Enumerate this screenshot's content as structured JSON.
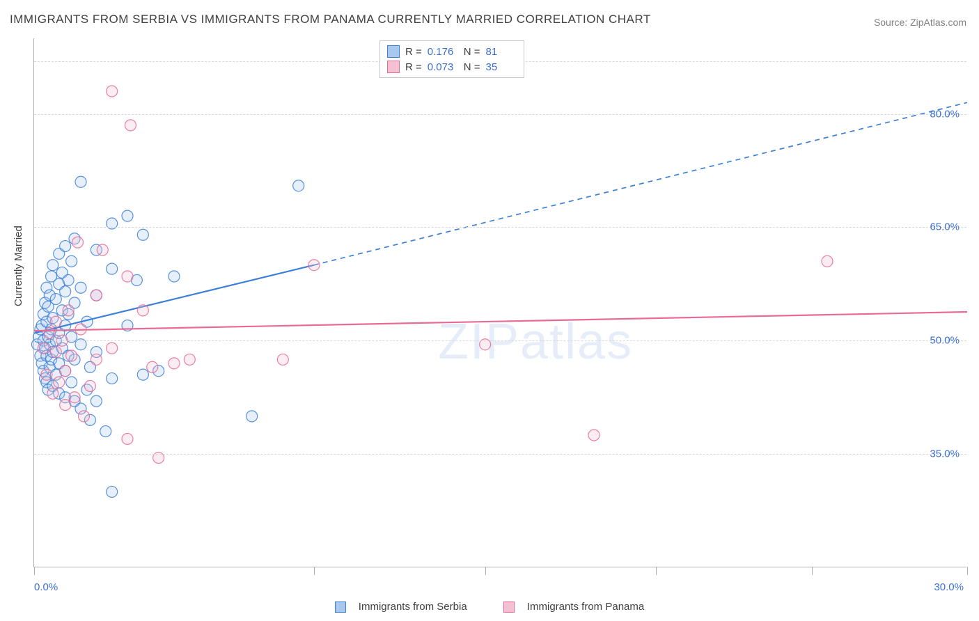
{
  "title": "IMMIGRANTS FROM SERBIA VS IMMIGRANTS FROM PANAMA CURRENTLY MARRIED CORRELATION CHART",
  "source": "Source: ZipAtlas.com",
  "ylabel": "Currently Married",
  "watermark": "ZIPatlas",
  "chart": {
    "type": "scatter-correlation",
    "xlim": [
      0.0,
      30.0
    ],
    "ylim": [
      20.0,
      90.0
    ],
    "xtick_positions": [
      0.0,
      9.0,
      14.5,
      20.0,
      25.0,
      30.0
    ],
    "xtick_labels": {
      "start": "0.0%",
      "end": "30.0%"
    },
    "ytick_positions": [
      35.0,
      50.0,
      65.0,
      80.0,
      87.0
    ],
    "ytick_labels": [
      "35.0%",
      "50.0%",
      "65.0%",
      "80.0%"
    ],
    "grid_color": "#d8d8d8",
    "axis_color": "#b0b0b0",
    "background_color": "#ffffff",
    "label_color": "#3b6fd4",
    "text_color": "#404040",
    "marker_radius": 8,
    "marker_fill_opacity": 0.28,
    "marker_stroke_opacity": 0.85,
    "line_width": 2.2
  },
  "series": [
    {
      "name": "Immigrants from Serbia",
      "color": "#3b7fd8",
      "fill": "#a8c8ee",
      "R": "0.176",
      "N": "81",
      "trend": {
        "x1": 0.0,
        "y1": 51.0,
        "x2": 9.0,
        "y2": 60.0,
        "x_extrap": 30.0,
        "y_extrap": 81.5
      },
      "points": [
        [
          0.1,
          49.5
        ],
        [
          0.15,
          50.5
        ],
        [
          0.2,
          48.0
        ],
        [
          0.2,
          51.5
        ],
        [
          0.25,
          47.0
        ],
        [
          0.25,
          52.0
        ],
        [
          0.3,
          46.0
        ],
        [
          0.3,
          50.0
        ],
        [
          0.3,
          53.5
        ],
        [
          0.35,
          45.0
        ],
        [
          0.35,
          49.0
        ],
        [
          0.35,
          55.0
        ],
        [
          0.4,
          44.5
        ],
        [
          0.4,
          48.0
        ],
        [
          0.4,
          52.5
        ],
        [
          0.4,
          57.0
        ],
        [
          0.45,
          43.5
        ],
        [
          0.45,
          50.5
        ],
        [
          0.45,
          54.5
        ],
        [
          0.5,
          46.5
        ],
        [
          0.5,
          49.5
        ],
        [
          0.5,
          56.0
        ],
        [
          0.55,
          47.5
        ],
        [
          0.55,
          51.5
        ],
        [
          0.55,
          58.5
        ],
        [
          0.6,
          44.0
        ],
        [
          0.6,
          48.5
        ],
        [
          0.6,
          53.0
        ],
        [
          0.6,
          60.0
        ],
        [
          0.7,
          45.5
        ],
        [
          0.7,
          50.0
        ],
        [
          0.7,
          55.5
        ],
        [
          0.8,
          43.0
        ],
        [
          0.8,
          47.0
        ],
        [
          0.8,
          51.0
        ],
        [
          0.8,
          57.5
        ],
        [
          0.8,
          61.5
        ],
        [
          0.9,
          49.0
        ],
        [
          0.9,
          54.0
        ],
        [
          0.9,
          59.0
        ],
        [
          1.0,
          42.5
        ],
        [
          1.0,
          46.0
        ],
        [
          1.0,
          52.0
        ],
        [
          1.0,
          56.5
        ],
        [
          1.0,
          62.5
        ],
        [
          1.1,
          48.0
        ],
        [
          1.1,
          53.5
        ],
        [
          1.1,
          58.0
        ],
        [
          1.2,
          44.5
        ],
        [
          1.2,
          50.5
        ],
        [
          1.2,
          60.5
        ],
        [
          1.3,
          42.0
        ],
        [
          1.3,
          47.5
        ],
        [
          1.3,
          55.0
        ],
        [
          1.3,
          63.5
        ],
        [
          1.5,
          41.0
        ],
        [
          1.5,
          49.5
        ],
        [
          1.5,
          57.0
        ],
        [
          1.5,
          71.0
        ],
        [
          1.7,
          43.5
        ],
        [
          1.7,
          52.5
        ],
        [
          1.8,
          39.5
        ],
        [
          1.8,
          46.5
        ],
        [
          2.0,
          42.0
        ],
        [
          2.0,
          48.5
        ],
        [
          2.0,
          56.0
        ],
        [
          2.0,
          62.0
        ],
        [
          2.3,
          38.0
        ],
        [
          2.5,
          45.0
        ],
        [
          2.5,
          59.5
        ],
        [
          2.5,
          65.5
        ],
        [
          2.5,
          30.0
        ],
        [
          3.0,
          52.0
        ],
        [
          3.0,
          66.5
        ],
        [
          3.3,
          58.0
        ],
        [
          3.5,
          45.5
        ],
        [
          3.5,
          64.0
        ],
        [
          4.0,
          46.0
        ],
        [
          4.5,
          58.5
        ],
        [
          7.0,
          40.0
        ],
        [
          8.5,
          70.5
        ]
      ]
    },
    {
      "name": "Immigrants from Panama",
      "color": "#e86a95",
      "fill": "#f5c0d2",
      "R": "0.073",
      "N": "35",
      "trend": {
        "x1": 0.0,
        "y1": 51.3,
        "x2": 30.0,
        "y2": 53.8,
        "x_extrap": 30.0,
        "y_extrap": 53.8
      },
      "points": [
        [
          0.3,
          49.0
        ],
        [
          0.4,
          45.5
        ],
        [
          0.5,
          51.0
        ],
        [
          0.6,
          43.0
        ],
        [
          0.7,
          48.5
        ],
        [
          0.7,
          52.5
        ],
        [
          0.8,
          44.5
        ],
        [
          0.9,
          50.0
        ],
        [
          1.0,
          41.5
        ],
        [
          1.0,
          46.0
        ],
        [
          1.1,
          54.0
        ],
        [
          1.2,
          48.0
        ],
        [
          1.3,
          42.5
        ],
        [
          1.4,
          63.0
        ],
        [
          1.5,
          51.5
        ],
        [
          1.6,
          40.0
        ],
        [
          1.8,
          44.0
        ],
        [
          2.0,
          47.5
        ],
        [
          2.0,
          56.0
        ],
        [
          2.2,
          62.0
        ],
        [
          2.5,
          49.0
        ],
        [
          2.5,
          83.0
        ],
        [
          3.0,
          37.0
        ],
        [
          3.0,
          58.5
        ],
        [
          3.1,
          78.5
        ],
        [
          3.5,
          54.0
        ],
        [
          3.8,
          46.5
        ],
        [
          4.0,
          34.5
        ],
        [
          4.5,
          47.0
        ],
        [
          5.0,
          47.5
        ],
        [
          8.0,
          47.5
        ],
        [
          9.0,
          60.0
        ],
        [
          14.5,
          49.5
        ],
        [
          18.0,
          37.5
        ],
        [
          25.5,
          60.5
        ]
      ]
    }
  ],
  "legend_top": {
    "R_label": "R  =",
    "N_label": "N  ="
  }
}
